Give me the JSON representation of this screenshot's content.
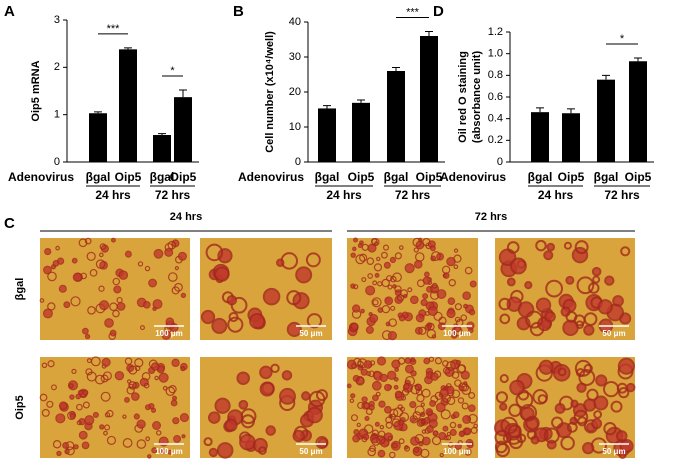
{
  "chart_data": [
    {
      "type": "bar",
      "panel": "A",
      "ylabel": [
        "Oip5 mRNA"
      ],
      "x_title": "Adenovirus",
      "categories": [
        "βgal",
        "Oip5",
        "βgal",
        "Oip5"
      ],
      "groups": [
        {
          "label": "24 hrs",
          "members": [
            0,
            1
          ]
        },
        {
          "label": "72 hrs",
          "members": [
            2,
            3
          ]
        }
      ],
      "values": [
        1.03,
        2.38,
        0.57,
        1.37
      ],
      "errors": [
        0.03,
        0.03,
        0.03,
        0.15
      ],
      "color": "#000000",
      "ylim": [
        0,
        3
      ],
      "yticks": [
        0,
        1,
        2,
        3
      ],
      "annotations": [
        {
          "text": "***",
          "between": [
            0,
            1
          ]
        },
        {
          "text": "*",
          "between": [
            2,
            3
          ]
        }
      ]
    },
    {
      "type": "bar",
      "panel": "B",
      "ylabel": [
        "Cell number (x10⁴/well)"
      ],
      "x_title": "Adenovirus",
      "categories": [
        "βgal",
        "Oip5",
        "βgal",
        "Oip5"
      ],
      "groups": [
        {
          "label": "24 hrs",
          "members": [
            0,
            1
          ]
        },
        {
          "label": "72 hrs",
          "members": [
            2,
            3
          ]
        }
      ],
      "values": [
        15.3,
        16.9,
        26.0,
        36.0
      ],
      "errors": [
        0.8,
        0.8,
        1.0,
        1.3
      ],
      "color": "#000000",
      "ylim": [
        0,
        40
      ],
      "yticks": [
        0,
        10,
        20,
        30,
        40
      ],
      "annotations": [
        {
          "text": "***",
          "between": [
            2,
            3
          ]
        }
      ]
    },
    {
      "type": "bar",
      "panel": "D",
      "ylabel": [
        "Oil red O staining",
        "(absorbance unit)"
      ],
      "x_title": "Adenovirus",
      "categories": [
        "βgal",
        "Oip5",
        "βgal",
        "Oip5"
      ],
      "groups": [
        {
          "label": "24 hrs",
          "members": [
            0,
            1
          ]
        },
        {
          "label": "72 hrs",
          "members": [
            2,
            3
          ]
        }
      ],
      "values": [
        0.46,
        0.45,
        0.76,
        0.93
      ],
      "errors": [
        0.04,
        0.04,
        0.04,
        0.03
      ],
      "color": "#000000",
      "ylim": [
        0,
        1.2
      ],
      "yticks": [
        0,
        0.2,
        0.4,
        0.6,
        0.8,
        {
          "value": 1,
          "label": "1.0"
        },
        1.2
      ],
      "annotations": [
        {
          "text": "*",
          "between": [
            2,
            3
          ]
        }
      ]
    }
  ],
  "micrographs": {
    "panel": "C",
    "columns": [
      "24 hrs",
      "72 hrs"
    ],
    "rows": [
      "βgal",
      "Oip5"
    ],
    "scale_bars": [
      [
        "100 μm",
        "50 μm",
        "100 μm",
        "50 μm"
      ],
      [
        "100 μm",
        "50 μm",
        "100 μm",
        "50 μm"
      ]
    ]
  }
}
